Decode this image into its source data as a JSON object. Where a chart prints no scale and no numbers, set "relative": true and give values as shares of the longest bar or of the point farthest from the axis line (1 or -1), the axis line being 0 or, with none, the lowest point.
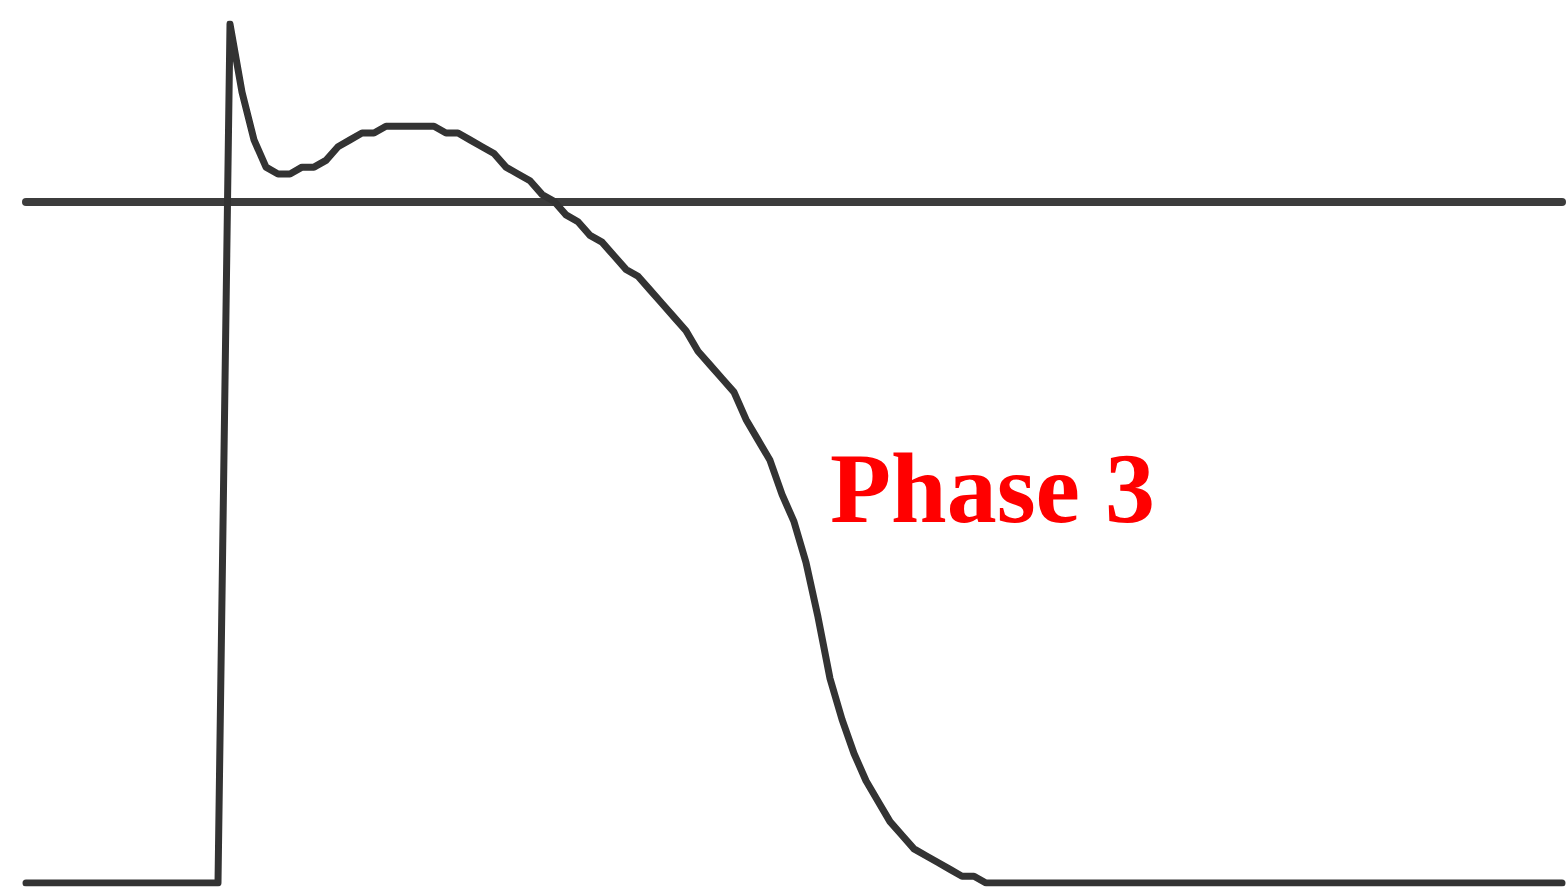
{
  "chart_data": {
    "type": "line",
    "relative": true,
    "tick_labels": false,
    "marker": "none",
    "line_style": "solid",
    "color": "#333333",
    "categories": [
      null,
      null,
      null,
      null,
      null,
      null,
      null,
      null,
      null,
      null,
      null,
      null,
      null,
      null,
      null,
      null,
      null,
      null,
      null,
      null,
      null,
      null,
      null,
      null,
      null,
      null,
      null,
      null,
      null,
      null,
      null,
      null,
      null,
      null,
      null,
      null,
      null,
      null,
      null,
      null,
      null,
      null,
      null,
      null,
      null,
      null,
      null,
      null,
      null,
      null,
      null,
      null,
      null,
      null,
      null,
      null,
      null,
      null,
      null,
      null,
      null,
      null,
      null,
      null,
      null,
      null,
      null,
      null,
      null,
      null,
      null,
      null,
      null,
      null,
      null,
      null,
      null,
      null,
      null,
      null,
      null,
      null,
      null,
      null,
      null,
      null,
      null,
      null,
      null,
      null,
      null,
      null,
      null,
      null,
      null,
      null,
      null,
      null,
      null,
      null,
      null,
      null,
      null,
      null,
      null,
      null,
      null,
      null,
      null,
      null,
      null,
      null,
      null,
      null,
      null,
      null,
      null,
      null,
      null,
      null,
      null,
      null,
      null,
      null,
      null,
      null,
      null,
      null,
      null
    ],
    "values": [
      -1,
      -1,
      -1,
      -1,
      -1,
      -1,
      -1,
      -1,
      -1,
      -1,
      -1,
      -1,
      -1,
      -1,
      -1,
      -1,
      -1,
      0.26,
      0.16,
      0.09,
      0.05,
      0.04,
      0.04,
      0.05,
      0.05,
      0.06,
      0.08,
      0.09,
      0.1,
      0.1,
      0.11,
      0.11,
      0.11,
      0.11,
      0.11,
      0.1,
      0.1,
      0.09,
      0.08,
      0.07,
      0.05,
      0.04,
      0.03,
      0.01,
      0,
      -0.02,
      -0.03,
      -0.05,
      -0.06,
      -0.08,
      -0.1,
      -0.11,
      -0.13,
      -0.15,
      -0.17,
      -0.19,
      -0.22,
      -0.24,
      -0.26,
      -0.28,
      -0.32,
      -0.35,
      -0.38,
      -0.43,
      -0.47,
      -0.53,
      -0.61,
      -0.7,
      -0.76,
      -0.81,
      -0.85,
      -0.88,
      -0.91,
      -0.93,
      -0.95,
      -0.96,
      -0.97,
      -0.98,
      -0.99,
      -0.99,
      -1,
      -1,
      -1,
      -1,
      -1,
      -1,
      -1,
      -1,
      -1,
      -1,
      -1,
      -1,
      -1,
      -1,
      -1,
      -1,
      -1,
      -1,
      -1,
      -1,
      -1,
      -1,
      -1,
      -1,
      -1,
      -1,
      -1,
      -1,
      -1,
      -1,
      -1,
      -1,
      -1,
      -1,
      -1,
      -1,
      -1,
      -1,
      -1,
      -1,
      -1,
      -1,
      -1,
      -1,
      -1,
      -1,
      -1,
      -1,
      -1
    ],
    "annotations": [
      "Phase 3"
    ]
  }
}
